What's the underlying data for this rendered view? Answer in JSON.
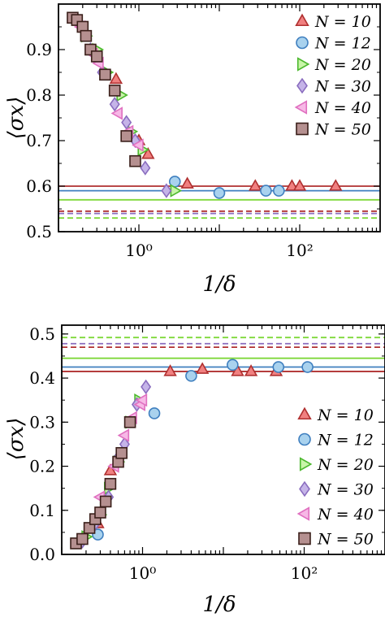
{
  "chart_data": [
    {
      "type": "scatter",
      "panel": "top",
      "xscale": "log",
      "xlim": [
        0.1,
        1000
      ],
      "ylim": [
        0.5,
        1.0
      ],
      "xlabel": "1/δ",
      "ylabel": "⟨σx⟩",
      "xticks": [
        {
          "value": 1,
          "label": "10⁰"
        },
        {
          "value": 100,
          "label": "10²"
        }
      ],
      "yticks": [
        0.5,
        0.6,
        0.7,
        0.8,
        0.9
      ],
      "legend_position": "top-right",
      "series": [
        {
          "name": "N = 10",
          "marker": "triangle-up",
          "color": "#b03030",
          "fill": "#f08080",
          "points": [
            [
              0.52,
              0.835
            ],
            [
              1.0,
              0.7
            ],
            [
              1.3,
              0.67
            ],
            [
              4.0,
              0.605
            ],
            [
              28,
              0.6
            ],
            [
              80,
              0.6
            ],
            [
              100,
              0.6
            ],
            [
              280,
              0.6
            ]
          ]
        },
        {
          "name": "N = 12",
          "marker": "circle",
          "color": "#3f7fbf",
          "fill": "#a9d2ee",
          "points": [
            [
              2.8,
              0.61
            ],
            [
              10,
              0.585
            ],
            [
              38,
              0.59
            ],
            [
              55,
              0.59
            ]
          ]
        },
        {
          "name": "N = 20",
          "marker": "triangle-right",
          "color": "#4db82f",
          "fill": "#c8f5a8",
          "points": [
            [
              0.22,
              0.93
            ],
            [
              0.3,
              0.9
            ],
            [
              0.4,
              0.85
            ],
            [
              0.6,
              0.8
            ],
            [
              0.8,
              0.72
            ],
            [
              1.1,
              0.68
            ],
            [
              2.8,
              0.59
            ]
          ]
        },
        {
          "name": "N = 30",
          "marker": "diamond",
          "color": "#8a6dbf",
          "fill": "#c5b4e8",
          "points": [
            [
              0.18,
              0.96
            ],
            [
              0.25,
              0.9
            ],
            [
              0.35,
              0.85
            ],
            [
              0.5,
              0.78
            ],
            [
              0.7,
              0.74
            ],
            [
              0.9,
              0.7
            ],
            [
              1.2,
              0.64
            ],
            [
              2.2,
              0.59
            ]
          ]
        },
        {
          "name": "N = 40",
          "marker": "triangle-left",
          "color": "#e070c0",
          "fill": "#f7b8e6",
          "points": [
            [
              0.19,
              0.95
            ],
            [
              0.27,
              0.89
            ],
            [
              0.32,
              0.87
            ],
            [
              0.55,
              0.76
            ],
            [
              0.75,
              0.72
            ],
            [
              1.0,
              0.69
            ]
          ]
        },
        {
          "name": "N = 50",
          "marker": "square",
          "color": "#3a1f1a",
          "fill": "#b59090",
          "points": [
            [
              0.15,
              0.97
            ],
            [
              0.17,
              0.965
            ],
            [
              0.2,
              0.95
            ],
            [
              0.22,
              0.93
            ],
            [
              0.25,
              0.9
            ],
            [
              0.3,
              0.885
            ],
            [
              0.38,
              0.845
            ],
            [
              0.5,
              0.81
            ],
            [
              0.7,
              0.71
            ],
            [
              0.9,
              0.655
            ]
          ]
        }
      ],
      "reference_lines": [
        {
          "y": 0.6,
          "color": "#b03030",
          "style": "solid"
        },
        {
          "y": 0.59,
          "color": "#3f7fbf",
          "style": "solid"
        },
        {
          "y": 0.57,
          "color": "#7fd83a",
          "style": "solid"
        },
        {
          "y": 0.545,
          "color": "#b03030",
          "style": "dashed"
        },
        {
          "y": 0.54,
          "color": "#8a6dbf",
          "style": "dashed"
        },
        {
          "y": 0.53,
          "color": "#7fd83a",
          "style": "dashed"
        }
      ]
    },
    {
      "type": "scatter",
      "panel": "bottom",
      "xscale": "log",
      "xlim": [
        0.1,
        1000
      ],
      "ylim": [
        0.0,
        0.52
      ],
      "xlabel": "1/δ",
      "ylabel": "⟨σx⟩",
      "xticks": [
        {
          "value": 1,
          "label": "10⁰"
        },
        {
          "value": 100,
          "label": "10²"
        }
      ],
      "yticks": [
        0.0,
        0.1,
        0.2,
        0.3,
        0.4,
        0.5
      ],
      "legend_position": "lower-right",
      "series": [
        {
          "name": "N = 10",
          "marker": "triangle-up",
          "color": "#b03030",
          "fill": "#f08080",
          "points": [
            [
              0.28,
              0.07
            ],
            [
              0.4,
              0.19
            ],
            [
              2.2,
              0.415
            ],
            [
              5.5,
              0.42
            ],
            [
              15,
              0.415
            ],
            [
              22,
              0.415
            ],
            [
              45,
              0.415
            ]
          ]
        },
        {
          "name": "N = 12",
          "marker": "circle",
          "color": "#3f7fbf",
          "fill": "#a9d2ee",
          "points": [
            [
              0.28,
              0.045
            ],
            [
              1.4,
              0.32
            ],
            [
              4,
              0.405
            ],
            [
              13,
              0.43
            ],
            [
              48,
              0.425
            ],
            [
              110,
              0.425
            ]
          ]
        },
        {
          "name": "N = 20",
          "marker": "triangle-right",
          "color": "#4db82f",
          "fill": "#c8f5a8",
          "points": [
            [
              0.2,
              0.04
            ],
            [
              0.3,
              0.09
            ],
            [
              0.38,
              0.15
            ],
            [
              0.5,
              0.21
            ],
            [
              0.7,
              0.3
            ],
            [
              0.9,
              0.35
            ]
          ]
        },
        {
          "name": "N = 30",
          "marker": "diamond",
          "color": "#8a6dbf",
          "fill": "#c5b4e8",
          "points": [
            [
              0.18,
              0.03
            ],
            [
              0.26,
              0.07
            ],
            [
              0.38,
              0.13
            ],
            [
              0.5,
              0.22
            ],
            [
              0.6,
              0.25
            ],
            [
              0.85,
              0.34
            ],
            [
              1.1,
              0.38
            ]
          ]
        },
        {
          "name": "N = 40",
          "marker": "triangle-left",
          "color": "#e070c0",
          "fill": "#f7b8e6",
          "points": [
            [
              0.3,
              0.13
            ],
            [
              0.45,
              0.2
            ],
            [
              0.6,
              0.27
            ],
            [
              0.75,
              0.31
            ],
            [
              0.95,
              0.34
            ],
            [
              1.0,
              0.35
            ]
          ]
        },
        {
          "name": "N = 50",
          "marker": "square",
          "color": "#3a1f1a",
          "fill": "#b59090",
          "points": [
            [
              0.15,
              0.025
            ],
            [
              0.18,
              0.035
            ],
            [
              0.22,
              0.06
            ],
            [
              0.26,
              0.08
            ],
            [
              0.3,
              0.095
            ],
            [
              0.35,
              0.12
            ],
            [
              0.4,
              0.16
            ],
            [
              0.5,
              0.21
            ],
            [
              0.55,
              0.23
            ],
            [
              0.7,
              0.3
            ]
          ]
        }
      ],
      "reference_lines": [
        {
          "y": 0.415,
          "color": "#b03030",
          "style": "solid"
        },
        {
          "y": 0.425,
          "color": "#3f7fbf",
          "style": "solid"
        },
        {
          "y": 0.445,
          "color": "#7fd83a",
          "style": "solid"
        },
        {
          "y": 0.47,
          "color": "#b03030",
          "style": "dashed"
        },
        {
          "y": 0.478,
          "color": "#8a6dbf",
          "style": "dashed"
        },
        {
          "y": 0.492,
          "color": "#7fd83a",
          "style": "dashed"
        }
      ]
    }
  ]
}
